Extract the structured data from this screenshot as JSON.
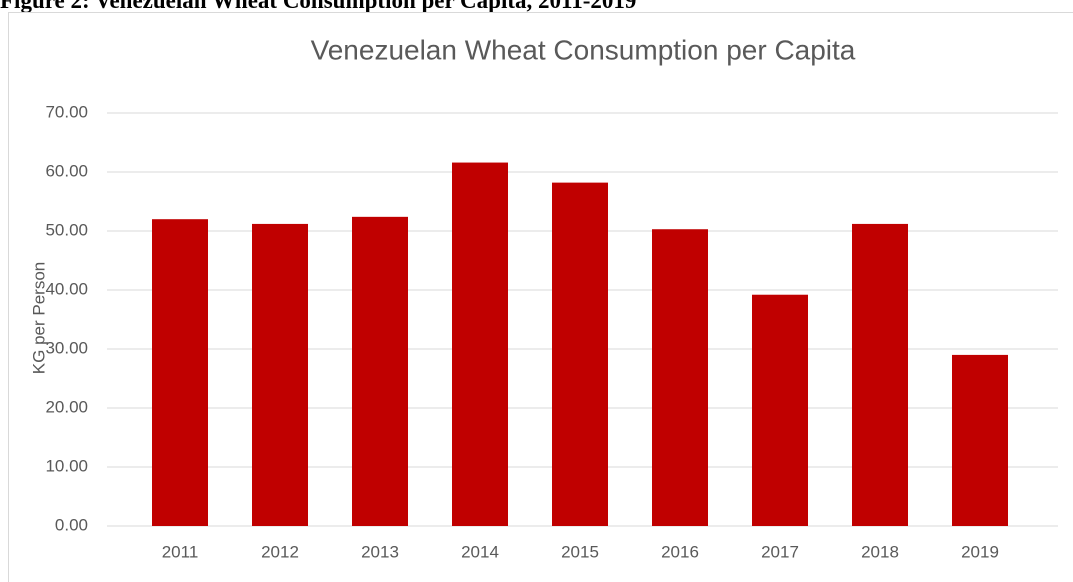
{
  "caption": "Figure 2: Venezuelan Wheat Consumption per Capita, 2011-2019",
  "chart_data": {
    "type": "bar",
    "title": "Venezuelan Wheat Consumption per Capita",
    "y_label": "KG per Person",
    "categories": [
      "2011",
      "2012",
      "2013",
      "2014",
      "2015",
      "2016",
      "2017",
      "2018",
      "2019"
    ],
    "values": [
      52.0,
      51.2,
      52.4,
      61.6,
      58.2,
      50.3,
      39.2,
      51.2,
      29.0
    ],
    "color": "#c00000",
    "ylim": [
      0,
      70
    ],
    "yticks": [
      {
        "value": 0,
        "label": "0.00"
      },
      {
        "value": 10,
        "label": "10.00"
      },
      {
        "value": 20,
        "label": "20.00"
      },
      {
        "value": 30,
        "label": "30.00"
      },
      {
        "value": 40,
        "label": "40.00"
      },
      {
        "value": 50,
        "label": "50.00"
      },
      {
        "value": 60,
        "label": "60.00"
      },
      {
        "value": 70,
        "label": "70.00"
      }
    ],
    "grid": true
  }
}
